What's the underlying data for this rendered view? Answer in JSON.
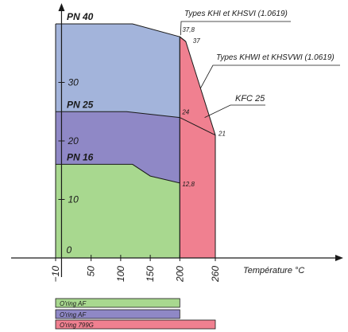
{
  "chart_data": {
    "type": "area",
    "title": "",
    "xlabel": "Température °C",
    "ylabel": "",
    "xlim": [
      -10,
      300
    ],
    "ylim": [
      -3,
      44
    ],
    "grid": false,
    "x_ticks": [
      {
        "value": -10,
        "label": "−10"
      },
      {
        "value": 0,
        "label": "0"
      },
      {
        "value": 50,
        "label": "50"
      },
      {
        "value": 100,
        "label": "100"
      },
      {
        "value": 150,
        "label": "150"
      },
      {
        "value": 200,
        "label": "200"
      },
      {
        "value": 260,
        "label": "260"
      }
    ],
    "y_ticks": [
      {
        "value": 0,
        "label": "0"
      },
      {
        "value": 10,
        "label": "10"
      },
      {
        "value": 20,
        "label": "20"
      },
      {
        "value": 30,
        "label": "30"
      }
    ],
    "series": [
      {
        "name": "PN 40",
        "color": "#a3b4db",
        "x": [
          -10,
          120,
          200,
          210
        ],
        "y": [
          40,
          40,
          37.8,
          37
        ]
      },
      {
        "name": "PN 25",
        "color": "#8f88c6",
        "x": [
          -10,
          110,
          200,
          260
        ],
        "y": [
          25,
          25,
          24,
          21
        ]
      },
      {
        "name": "PN 16",
        "color": "#a8d88f",
        "x": [
          -10,
          120,
          150,
          200
        ],
        "y": [
          16,
          16,
          14,
          12.8
        ]
      },
      {
        "name": "KFC 25",
        "color": "#f08090",
        "x": [
          200,
          210,
          260,
          260,
          200
        ],
        "y": [
          37.8,
          37,
          21,
          0,
          0
        ]
      }
    ],
    "point_labels": [
      {
        "x": 200,
        "y": 37.8,
        "label": "37,8"
      },
      {
        "x": 210,
        "y": 37,
        "label": "37"
      },
      {
        "x": 200,
        "y": 24,
        "label": "24"
      },
      {
        "x": 260,
        "y": 21,
        "label": "21"
      },
      {
        "x": 200,
        "y": 12.8,
        "label": "12,8"
      }
    ],
    "annotations": [
      {
        "text": "Types KHI et KHSVI (1.0619)"
      },
      {
        "text": "Types KHWI et KHSVWI (1.0619)"
      },
      {
        "text": "KFC 25"
      }
    ],
    "oring_bars": [
      {
        "label": "O'ring AF",
        "from": -10,
        "to": 200,
        "color": "#a8d88f"
      },
      {
        "label": "O'ring AF",
        "from": -10,
        "to": 200,
        "color": "#8f88c6"
      },
      {
        "label": "O'ring 799G",
        "from": -10,
        "to": 260,
        "color": "#f08090"
      }
    ]
  }
}
